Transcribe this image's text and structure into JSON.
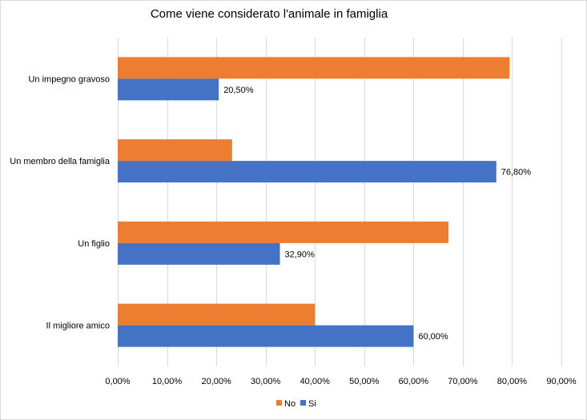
{
  "chart_data": {
    "type": "bar",
    "orientation": "horizontal",
    "title": "Come viene considerato l'animale in famiglia",
    "categories": [
      "Un impegno gravoso",
      "Un membro della famiglia",
      "Un figlio",
      "Il migliore amico"
    ],
    "series": [
      {
        "name": "No",
        "color": "#ED7D31",
        "values": [
          0.795,
          0.232,
          0.671,
          0.4
        ]
      },
      {
        "name": "Si",
        "color": "#4472C4",
        "values": [
          0.205,
          0.768,
          0.329,
          0.6
        ],
        "data_labels": [
          "20,50%",
          "76,80%",
          "32,90%",
          "60,00%"
        ]
      }
    ],
    "xlim": [
      0,
      0.9
    ],
    "x_ticks": [
      0,
      0.1,
      0.2,
      0.3,
      0.4,
      0.5,
      0.6,
      0.7,
      0.8,
      0.9
    ],
    "x_tick_labels": [
      "0,00%",
      "10,00%",
      "20,00%",
      "30,00%",
      "40,00%",
      "50,00%",
      "60,00%",
      "70,00%",
      "80,00%",
      "90,00%"
    ],
    "grid": true,
    "legend_position": "bottom"
  }
}
